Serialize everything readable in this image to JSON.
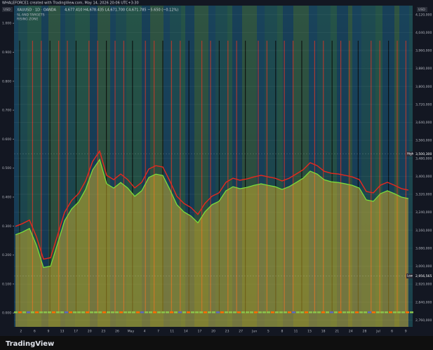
{
  "header": "WHALEFORCE1 created with TradingView.com, May 14, 2026 20:06 UTC+3:30",
  "currency_left": "USD",
  "currency_right": "USD",
  "legend": [
    "XAUUSD · 1D · OANDA",
    "4,677.410  H4,678.435  L4,671.700  C4,671.785  −5.650 (−0.12%)",
    "SL AND TARGETS",
    "RISING ZONE"
  ],
  "brand": "TradingView",
  "chart_data": {
    "type": "area",
    "series": [
      {
        "color": "#e6c229",
        "values": [
          3140000,
          3152000,
          3168000,
          3093000,
          2994000,
          3000000,
          3100000,
          3202000,
          3255000,
          3286000,
          3342000,
          3429000,
          3475000,
          3367000,
          3348000,
          3373000,
          3348000,
          3311000,
          3336000,
          3395000,
          3410000,
          3404000,
          3342000,
          3274000,
          3242000,
          3224000,
          3193000,
          3242000,
          3274000,
          3289000,
          3336000,
          3354000,
          3345000,
          3351000,
          3360000,
          3367000,
          3360000,
          3354000,
          3342000,
          3354000,
          3373000,
          3392000,
          3423000,
          3410000,
          3385000,
          3376000,
          3373000,
          3367000,
          3360000,
          3348000,
          3295000,
          3289000,
          3323000,
          3336000,
          3323000,
          3308000,
          3301000
        ]
      }
    ],
    "x_labels": [
      "2",
      "6",
      "9",
      "13",
      "17",
      "20",
      "23",
      "26",
      "May",
      "4",
      "7",
      "11",
      "14",
      "17",
      "20",
      "23",
      "27",
      "Jun",
      "5",
      "8",
      "11",
      "15",
      "18",
      "21",
      "24",
      "28",
      "Jul",
      "6",
      "9"
    ],
    "ylim": [
      2730000,
      4160000
    ],
    "yticks": [
      {
        "value": 2760000,
        "label": "2,760,000"
      },
      {
        "value": 2840000,
        "label": "2,840,000"
      },
      {
        "value": 2920000,
        "label": "2,920,000"
      },
      {
        "value": 3000000,
        "label": "3,000,000"
      },
      {
        "value": 3080000,
        "label": "3,080,000"
      },
      {
        "value": 3160000,
        "label": "3,160,000"
      },
      {
        "value": 3240000,
        "label": "3,240,000"
      },
      {
        "value": 3320000,
        "label": "3,320,000"
      },
      {
        "value": 3400000,
        "label": "3,400,000"
      },
      {
        "value": 3480000,
        "label": "3,480,000"
      },
      {
        "value": 3560000,
        "label": "3,560,000"
      },
      {
        "value": 3640000,
        "label": "3,640,000"
      },
      {
        "value": 3720000,
        "label": "3,720,000"
      },
      {
        "value": 3800000,
        "label": "3,800,000"
      },
      {
        "value": 3880000,
        "label": "3,880,000"
      },
      {
        "value": 3960000,
        "label": "3,960,000"
      },
      {
        "value": 4040000,
        "label": "4,040,000"
      },
      {
        "value": 4120000,
        "label": "4,120,000"
      }
    ],
    "y2lim": [
      -0.048,
      1.061
    ],
    "y2ticks": [
      {
        "value": 0,
        "label": "0.000"
      },
      {
        "value": 0.1,
        "label": "0.100"
      },
      {
        "value": 0.2,
        "label": "0.200"
      },
      {
        "value": 0.3,
        "label": "0.300"
      },
      {
        "value": 0.4,
        "label": "0.400"
      },
      {
        "value": 0.5,
        "label": "0.500"
      },
      {
        "value": 0.6,
        "label": "0.600"
      },
      {
        "value": 0.7,
        "label": "0.700"
      },
      {
        "value": 0.8,
        "label": "0.800"
      },
      {
        "value": 0.9,
        "label": "0.900"
      },
      {
        "value": 1,
        "label": "1.000"
      }
    ],
    "high": {
      "label": "High",
      "value": 3500300,
      "value_label": "3,500,300"
    },
    "low": {
      "label": "Low",
      "value": 2956565,
      "value_label": "2,956,565"
    }
  }
}
